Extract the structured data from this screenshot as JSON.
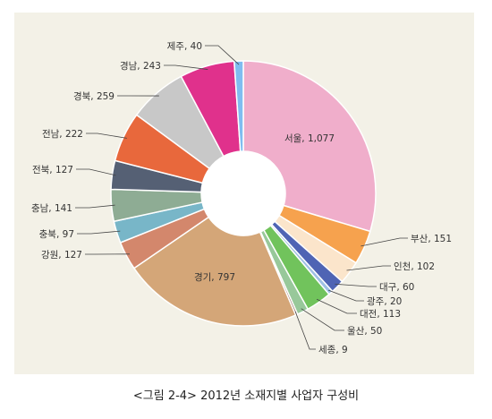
{
  "caption": "<그림 2-4> 2012년 소재지별 사업자 구성비",
  "chart_data": {
    "type": "pie",
    "donut": true,
    "categories": [
      "서울",
      "부산",
      "인천",
      "대구",
      "광주",
      "대전",
      "울산",
      "세종",
      "경기",
      "강원",
      "충북",
      "충남",
      "전북",
      "전남",
      "경북",
      "경남",
      "제주"
    ],
    "values": [
      1077,
      151,
      102,
      60,
      20,
      113,
      50,
      9,
      797,
      127,
      97,
      141,
      127,
      222,
      259,
      243,
      40
    ],
    "labels": [
      "서울, 1,077",
      "부산, 151",
      "인천, 102",
      "대구, 60",
      "광주, 20",
      "대전, 113",
      "울산, 50",
      "세종, 9",
      "경기, 797",
      "강원, 127",
      "충북, 97",
      "충남, 141",
      "전북, 127",
      "전남, 222",
      "경북, 259",
      "경남, 243",
      "제주, 40"
    ],
    "colors": [
      "#f0aecb",
      "#f6a24e",
      "#fbe5cb",
      "#4f64b4",
      "#9fc0e4",
      "#71c35c",
      "#98c89a",
      "#8a5f52",
      "#d4a678",
      "#d3876c",
      "#78b6c8",
      "#8eac94",
      "#556074",
      "#e8683c",
      "#c8c8c8",
      "#e0318c",
      "#7fbcf0"
    ]
  }
}
